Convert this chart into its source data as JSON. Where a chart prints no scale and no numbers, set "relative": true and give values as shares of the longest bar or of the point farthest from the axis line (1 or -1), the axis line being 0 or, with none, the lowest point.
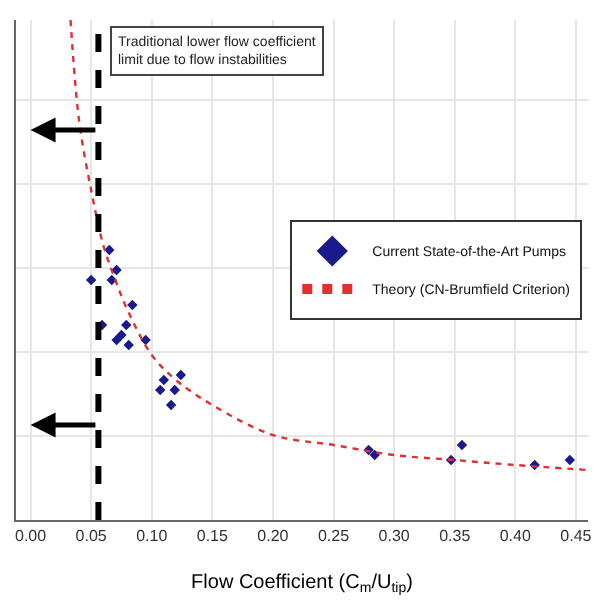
{
  "chart_data": {
    "type": "scatter",
    "relative": true,
    "xlabel": "Flow Coefficient (C$_{m}$/U$_{tip}$)",
    "xlim": [
      -0.012,
      0.46
    ],
    "xticks": [
      {
        "value": 0,
        "label": "0.00"
      },
      {
        "value": 0.05,
        "label": "0.05"
      },
      {
        "value": 0.1,
        "label": "0.10"
      },
      {
        "value": 0.15,
        "label": "0.15"
      },
      {
        "value": 0.2,
        "label": "0.20"
      },
      {
        "value": 0.25,
        "label": "0.25"
      },
      {
        "value": 0.3,
        "label": "0.30"
      },
      {
        "value": 0.35,
        "label": "0.35"
      },
      {
        "value": 0.4,
        "label": "0.40"
      },
      {
        "value": 0.45,
        "label": "0.45"
      }
    ],
    "tick_labels": "x",
    "grid": true,
    "legend": "right",
    "series": [
      {
        "name": "Current State-of-the-Art Pumps",
        "marker": "diamond",
        "color": "#1a1a8c",
        "x": [
          0.065,
          0.05,
          0.071,
          0.067,
          0.059,
          0.084,
          0.071,
          0.075,
          0.079,
          0.081,
          0.095,
          0.11,
          0.124,
          0.107,
          0.119,
          0.116,
          0.279,
          0.284,
          0.347,
          0.356,
          0.416,
          0.445
        ],
        "values": [
          0.54,
          0.48,
          0.5,
          0.48,
          0.39,
          0.43,
          0.36,
          0.37,
          0.39,
          0.35,
          0.36,
          0.28,
          0.29,
          0.26,
          0.26,
          0.23,
          0.14,
          0.13,
          0.12,
          0.15,
          0.11,
          0.12
        ]
      },
      {
        "name": "Theory (CN-Brumfield Criterion)",
        "type": "line",
        "line_style": "dotted",
        "color": "#e03030",
        "x": [
          0.033,
          0.04,
          0.05,
          0.06,
          0.07,
          0.08,
          0.1,
          0.12,
          0.15,
          0.2,
          0.25,
          0.3,
          0.35,
          0.4,
          0.46
        ],
        "values": [
          1.0,
          0.8,
          0.66,
          0.55,
          0.48,
          0.42,
          0.33,
          0.28,
          0.23,
          0.17,
          0.15,
          0.13,
          0.12,
          0.11,
          0.1
        ]
      }
    ],
    "ref_lines": [
      {
        "axis": "x",
        "value": 0.056,
        "label": "Traditional lower flow coefficient limit due to flow instabilities",
        "color": "#000000",
        "line_style": "dashed"
      }
    ]
  }
}
